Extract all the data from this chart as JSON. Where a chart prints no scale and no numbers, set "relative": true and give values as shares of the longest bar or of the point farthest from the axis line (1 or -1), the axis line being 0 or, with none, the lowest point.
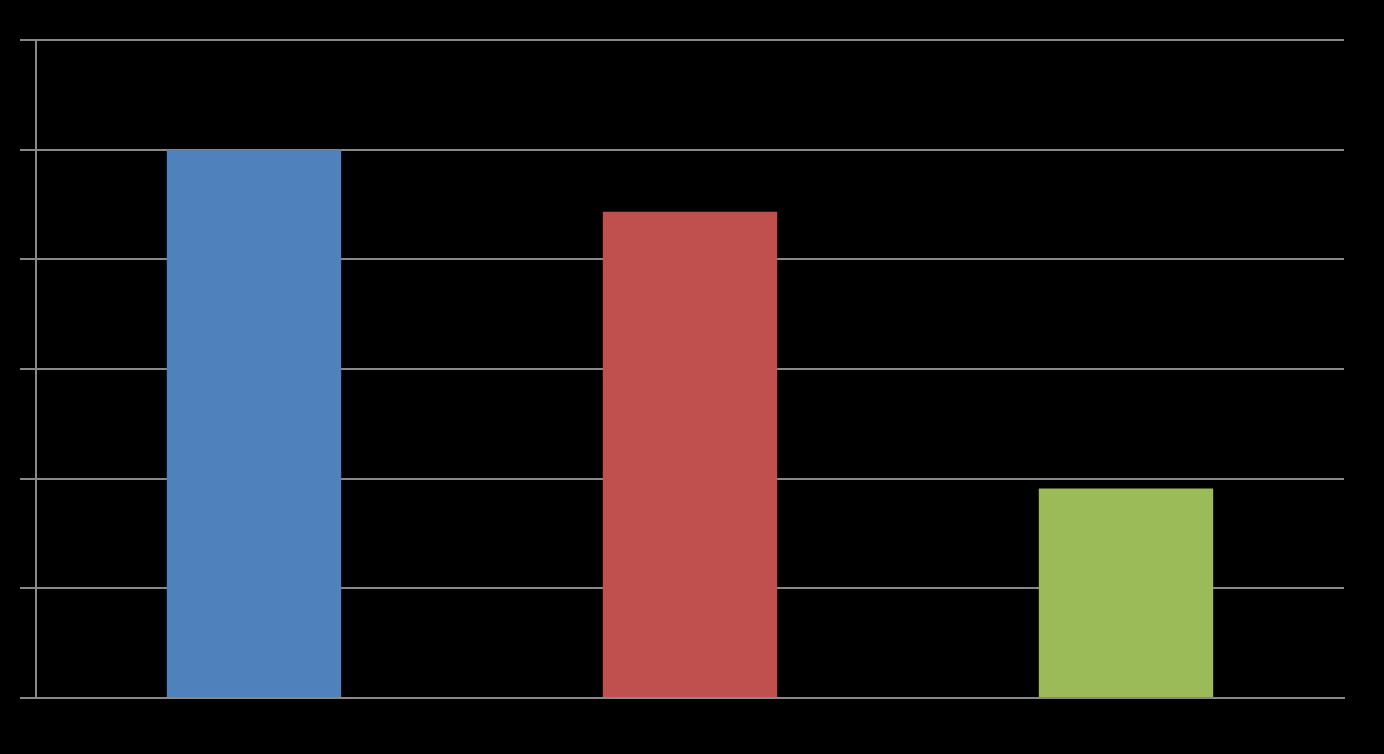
{
  "chart_data": {
    "type": "bar",
    "relative": true,
    "categories": [
      null,
      null,
      null
    ],
    "values": [
      1,
      0.887,
      0.382
    ],
    "colors": [
      "#4f81bd",
      "#c0504d",
      "#9bbb59"
    ],
    "grid": true,
    "legend": false
  }
}
